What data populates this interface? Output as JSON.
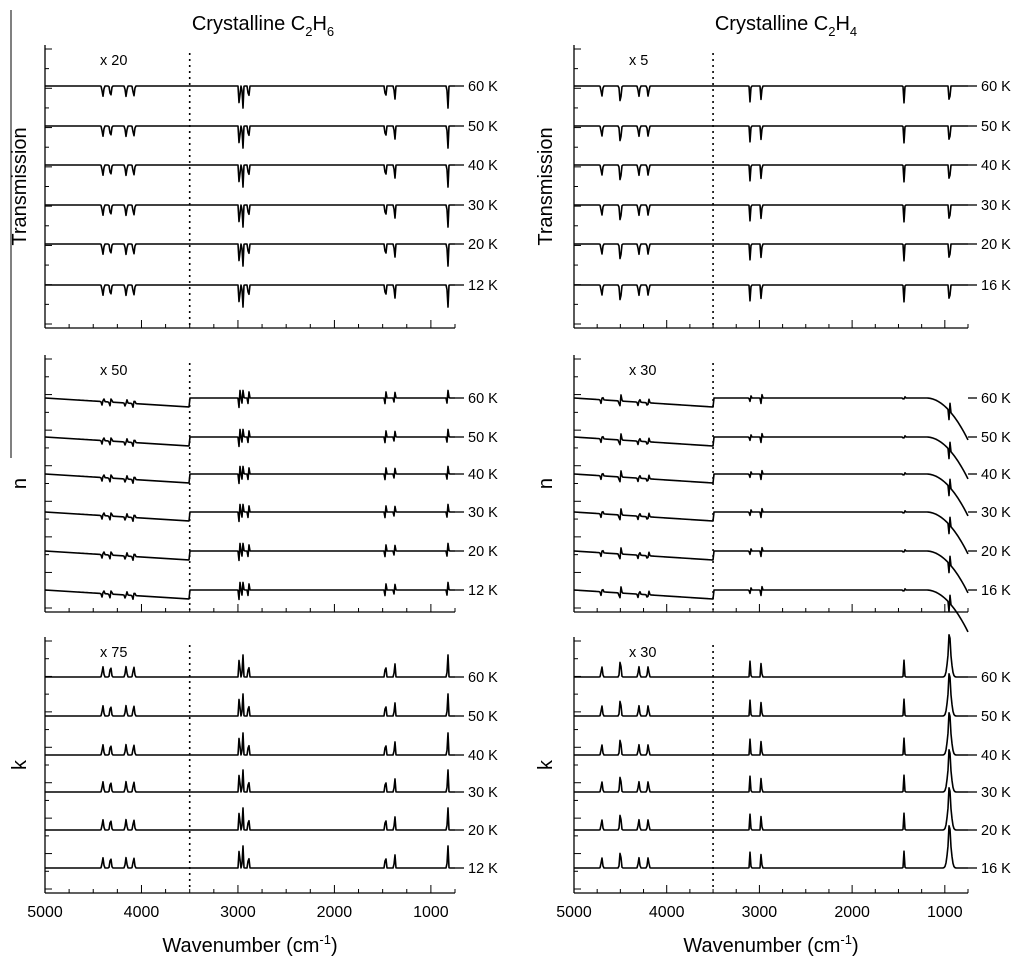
{
  "chart_data": [
    {
      "type": "line",
      "title_main": "Crystalline C",
      "title_sub1": "2",
      "title_mid": "H",
      "title_sub2": "6",
      "xlabel": "Wavenumber (cm",
      "xlabel_sup": "-1",
      "xlabel_end": ")",
      "xlim": [
        5000,
        750
      ],
      "xticks": [
        "5000",
        "4000",
        "3000",
        "2000",
        "1000"
      ],
      "xtick_values": [
        5000,
        4000,
        3000,
        2000,
        1000
      ],
      "dotted_line_x": 3500,
      "bands": [
        4400,
        4320,
        4160,
        4080,
        2985,
        2950,
        2890,
        1470,
        1375,
        825
      ],
      "panels": [
        {
          "ylabel": "Transmission",
          "scale": "x 20",
          "kind": "transmission",
          "temps": [
            "60 K",
            "50 K",
            "40 K",
            "30 K",
            "20 K",
            "12 K"
          ]
        },
        {
          "ylabel": "n",
          "scale": "x 50",
          "kind": "n",
          "temps": [
            "60 K",
            "50 K",
            "40 K",
            "30 K",
            "20 K",
            "12 K"
          ]
        },
        {
          "ylabel": "k",
          "scale": "x 75",
          "kind": "k",
          "temps": [
            "60 K",
            "50 K",
            "40 K",
            "30 K",
            "20 K",
            "12 K"
          ]
        }
      ]
    },
    {
      "type": "line",
      "title_main": "Crystalline C",
      "title_sub1": "2",
      "title_mid": "H",
      "title_sub2": "4",
      "xlabel": "Wavenumber (cm",
      "xlabel_sup": "-1",
      "xlabel_end": ")",
      "xlim": [
        5000,
        750
      ],
      "xticks": [
        "5000",
        "4000",
        "3000",
        "2000",
        "1000"
      ],
      "xtick_values": [
        5000,
        4000,
        3000,
        2000,
        1000
      ],
      "dotted_line_x": 3500,
      "bands": [
        4700,
        4500,
        4300,
        4200,
        3100,
        2980,
        1440,
        950
      ],
      "panels": [
        {
          "ylabel": "Transmission",
          "scale": "x 5",
          "kind": "transmission",
          "temps": [
            "60 K",
            "50 K",
            "40 K",
            "30 K",
            "20 K",
            "16 K"
          ]
        },
        {
          "ylabel": "n",
          "scale": "x 30",
          "kind": "n",
          "temps": [
            "60 K",
            "50 K",
            "40 K",
            "30 K",
            "20 K",
            "16 K"
          ]
        },
        {
          "ylabel": "k",
          "scale": "x 30",
          "kind": "k",
          "temps": [
            "60 K",
            "50 K",
            "40 K",
            "30 K",
            "20 K",
            "16 K"
          ]
        }
      ]
    }
  ]
}
